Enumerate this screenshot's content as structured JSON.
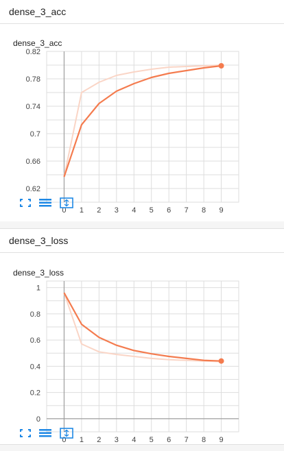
{
  "sections": [
    {
      "header": "dense_3_acc",
      "card_title": "dense_3_acc",
      "chart_data": {
        "type": "line",
        "title": "dense_3_acc",
        "x": [
          0,
          1,
          2,
          3,
          4,
          5,
          6,
          7,
          8,
          9
        ],
        "xlim": [
          -1,
          10
        ],
        "ylim": [
          0.6,
          0.82
        ],
        "yticks": [
          "0.62",
          "0.66",
          "0.7",
          "0.74",
          "0.78",
          "0.82"
        ],
        "xticks": [
          "0",
          "1",
          "2",
          "3",
          "4",
          "5",
          "6",
          "7",
          "8",
          "9"
        ],
        "grid": true,
        "series": [
          {
            "role": "smoothed",
            "color": "#f47b4e",
            "values": [
              0.637,
              0.713,
              0.744,
              0.762,
              0.773,
              0.782,
              0.788,
              0.792,
              0.796,
              0.799
            ]
          },
          {
            "role": "raw",
            "color": "#fad5c6",
            "values": [
              0.637,
              0.76,
              0.775,
              0.785,
              0.79,
              0.794,
              0.797,
              0.798,
              0.799,
              0.8
            ]
          }
        ]
      },
      "toolbar": [
        "fullscreen-icon",
        "data-list-icon",
        "fit-domain-icon"
      ]
    },
    {
      "header": "dense_3_loss",
      "card_title": "dense_3_loss",
      "chart_data": {
        "type": "line",
        "title": "dense_3_loss",
        "x": [
          0,
          1,
          2,
          3,
          4,
          5,
          6,
          7,
          8,
          9
        ],
        "xlim": [
          -1,
          10
        ],
        "ylim": [
          -0.1,
          1.05
        ],
        "yticks": [
          "0",
          "0.2",
          "0.4",
          "0.6",
          "0.8",
          "1"
        ],
        "xticks": [
          "0",
          "1",
          "2",
          "3",
          "4",
          "5",
          "6",
          "7",
          "8",
          "9"
        ],
        "grid": true,
        "series": [
          {
            "role": "smoothed",
            "color": "#f47b4e",
            "values": [
              0.96,
              0.72,
              0.62,
              0.56,
              0.52,
              0.495,
              0.475,
              0.46,
              0.445,
              0.44
            ]
          },
          {
            "role": "raw",
            "color": "#fad5c6",
            "values": [
              0.96,
              0.57,
              0.51,
              0.49,
              0.475,
              0.46,
              0.45,
              0.445,
              0.44,
              0.435
            ]
          }
        ]
      },
      "toolbar": [
        "fullscreen-icon",
        "data-list-icon",
        "fit-domain-icon"
      ]
    }
  ],
  "colors": {
    "accent": "#f47b4e",
    "raw_line": "#fad5c6",
    "toolbar_icon": "#1e88e5",
    "axis": "#9e9e9e",
    "grid": "#dddddd"
  }
}
